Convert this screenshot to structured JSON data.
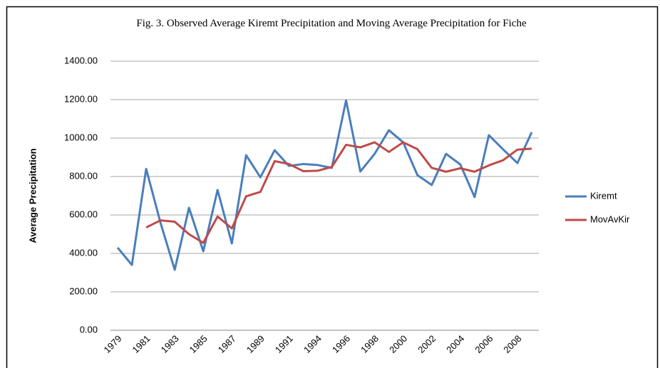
{
  "chart_data": {
    "type": "line",
    "title": "Fig. 3. Observed  Average Kiremt Precipitation and Moving Average Precipitation for Fiche",
    "y_label": "Average Precipitation",
    "categories": [
      "1979",
      null,
      "1981",
      null,
      "1983",
      null,
      "1985",
      null,
      "1987",
      null,
      "1989",
      null,
      "1991",
      null,
      "1994",
      null,
      "1996",
      null,
      "1998",
      null,
      "2000",
      null,
      "2002",
      null,
      "2004",
      null,
      "2006",
      null,
      "2008",
      null
    ],
    "series": [
      {
        "name": "Kiremt",
        "color": "#4a7ebb",
        "values": [
          430,
          340,
          840,
          560,
          315,
          637,
          411,
          730,
          452,
          911,
          796,
          937,
          855,
          865,
          860,
          845,
          1196,
          826,
          918,
          1041,
          978,
          807,
          756,
          918,
          863,
          693,
          1015,
          941,
          870,
          1030
        ]
      },
      {
        "name": "MovAvKir",
        "color": "#be4b48",
        "values": [
          null,
          null,
          535,
          572,
          565,
          500,
          455,
          592,
          530,
          697,
          720,
          880,
          865,
          828,
          830,
          850,
          965,
          952,
          978,
          928,
          978,
          942,
          845,
          825,
          843,
          825,
          858,
          885,
          940,
          945
        ]
      }
    ],
    "ylim": [
      0,
      1400
    ],
    "yticks": [
      {
        "value": 0,
        "label": "0.00"
      },
      {
        "value": 200,
        "label": "200.00"
      },
      {
        "value": 400,
        "label": "400.00"
      },
      {
        "value": 600,
        "label": "600.00"
      },
      {
        "value": 800,
        "label": "800.00"
      },
      {
        "value": 1000,
        "label": "1000.00"
      },
      {
        "value": 1200,
        "label": "1200.00"
      },
      {
        "value": 1400,
        "label": "1400.00"
      }
    ],
    "grid": true,
    "legend": "right"
  }
}
